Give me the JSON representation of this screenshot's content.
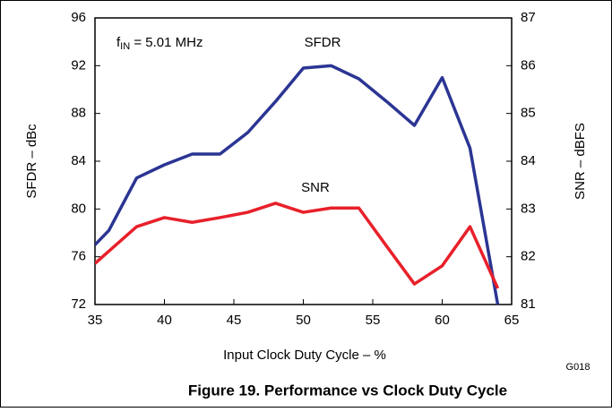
{
  "chart_data": {
    "type": "line",
    "title": "Figure 19. Performance vs Clock Duty Cycle",
    "xlabel": "Input Clock Duty Cycle – %",
    "ylabel": "SFDR – dBc",
    "y2label": "SNR – dBFS",
    "fin_label": [
      "f",
      "IN",
      " = 5.01 MHz"
    ],
    "figure_code": "G018",
    "xlim": [
      35,
      65
    ],
    "xticks": [
      35,
      40,
      45,
      50,
      55,
      60,
      65
    ],
    "ylim": [
      72,
      96
    ],
    "yticks": [
      72,
      76,
      80,
      84,
      88,
      92,
      96
    ],
    "y2lim": [
      81,
      87
    ],
    "y2ticks": [
      81,
      82,
      83,
      84,
      85,
      86,
      87
    ],
    "grid": false,
    "series": [
      {
        "name": "SFDR",
        "color": "#2b3593",
        "axis": "y",
        "x": [
          35,
          36,
          38,
          40,
          42,
          44,
          46,
          48,
          50,
          52,
          54,
          56,
          58,
          60,
          62,
          64
        ],
        "values": [
          77,
          78.2,
          82.6,
          83.7,
          84.6,
          84.6,
          86.4,
          89,
          91.8,
          92,
          90.9,
          89,
          87,
          91,
          85.1,
          72
        ]
      },
      {
        "name": "SNR",
        "color": "#e8202a",
        "axis": "y2",
        "x": [
          35,
          38,
          40,
          42,
          44,
          46,
          48,
          50,
          52,
          54,
          56,
          58,
          60,
          62,
          64
        ],
        "values": [
          81.86,
          82.63,
          82.82,
          82.72,
          82.82,
          82.93,
          83.12,
          82.93,
          83.02,
          83.02,
          82.22,
          81.43,
          81.81,
          82.63,
          81.34
        ]
      }
    ]
  }
}
